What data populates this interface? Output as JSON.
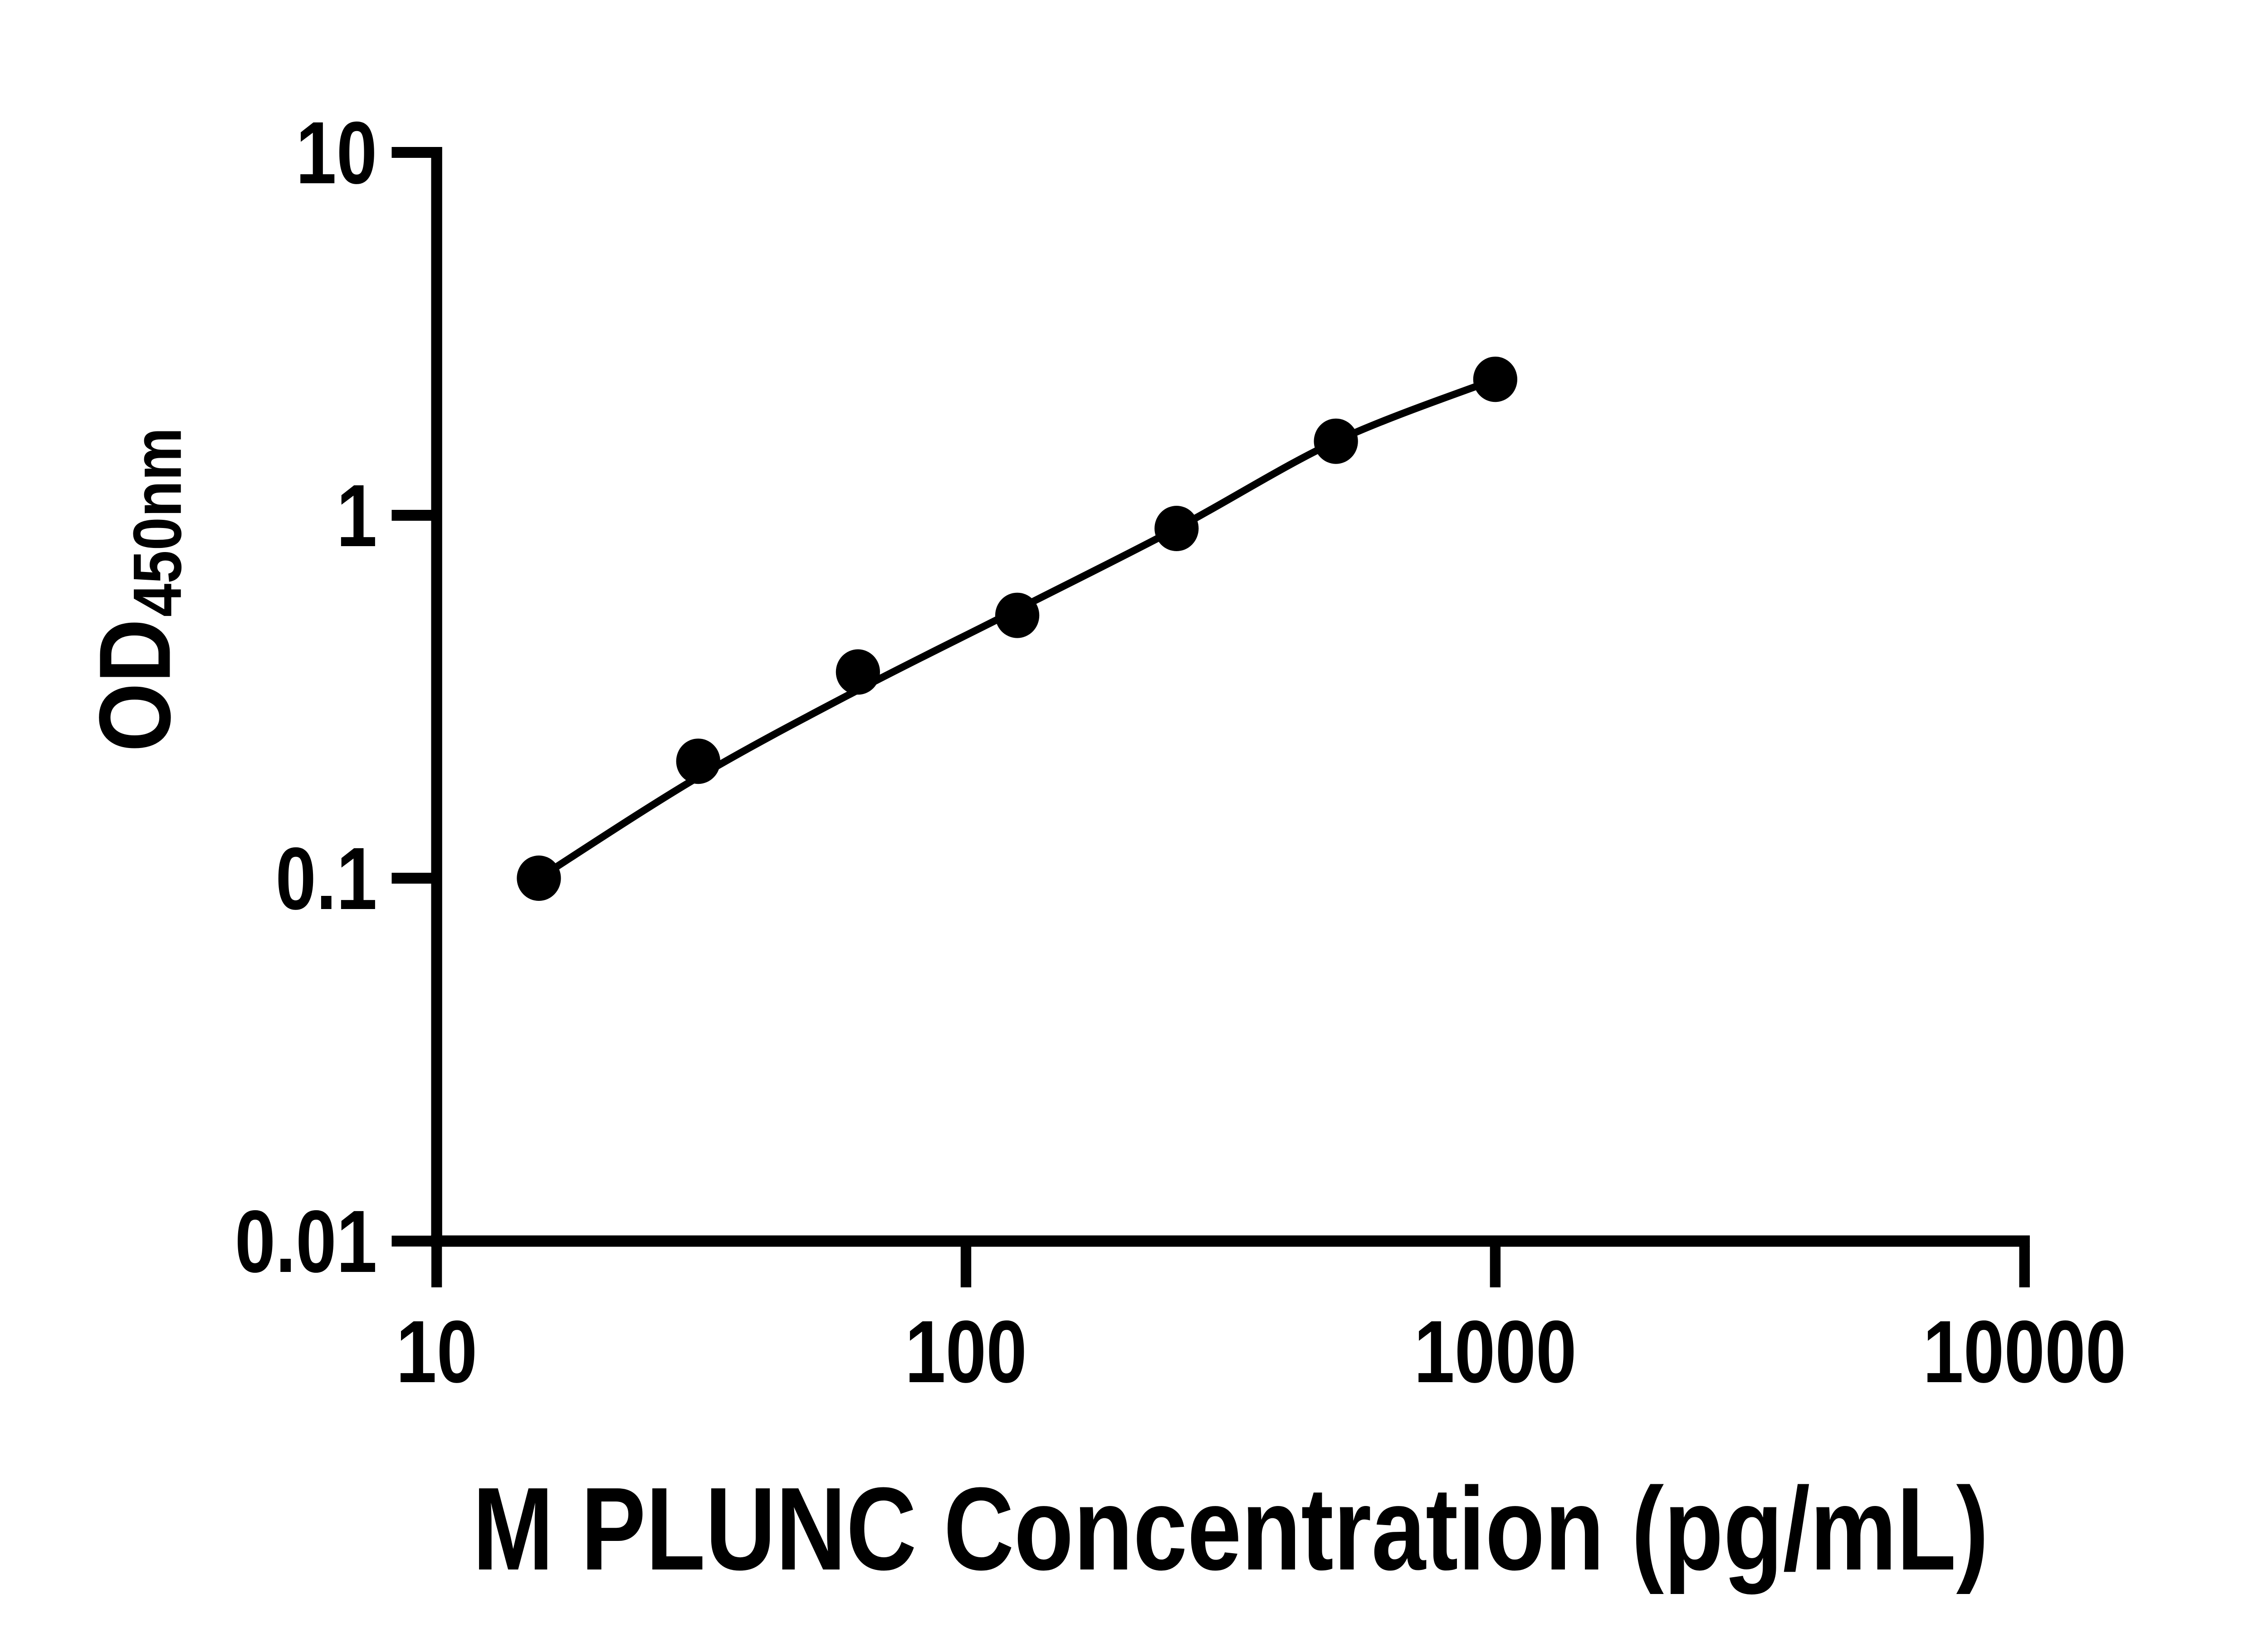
{
  "chart_data": {
    "type": "scatter",
    "title": "",
    "xlabel": "M PLUNC Concentration (pg/mL)",
    "ylabel_main": "OD",
    "ylabel_sub": "450nm",
    "x_scale": "log",
    "y_scale": "log",
    "x_range": [
      10,
      10000
    ],
    "y_range": [
      0.01,
      10
    ],
    "grid": false,
    "legend": null,
    "x": [
      15.6,
      31.2,
      62.5,
      125,
      250,
      500,
      1000
    ],
    "od_values": [
      0.1,
      0.21,
      0.37,
      0.53,
      0.92,
      1.6,
      2.37
    ],
    "fit_curve_od": [
      0.1,
      0.19,
      0.33,
      0.55,
      0.92,
      1.6,
      2.37
    ],
    "x_ticks": [
      {
        "value": 10,
        "label": "10"
      },
      {
        "value": 100,
        "label": "100"
      },
      {
        "value": 1000,
        "label": "1000"
      },
      {
        "value": 10000,
        "label": "10000"
      }
    ],
    "y_ticks": [
      {
        "value": 10,
        "label": "10"
      },
      {
        "value": 1,
        "label": "1"
      },
      {
        "value": 0.1,
        "label": "0.1"
      },
      {
        "value": 0.01,
        "label": "0.01"
      }
    ],
    "marker_color": "#000000",
    "line_color": "#000000",
    "axis_color": "#000000",
    "background": "#ffffff"
  }
}
